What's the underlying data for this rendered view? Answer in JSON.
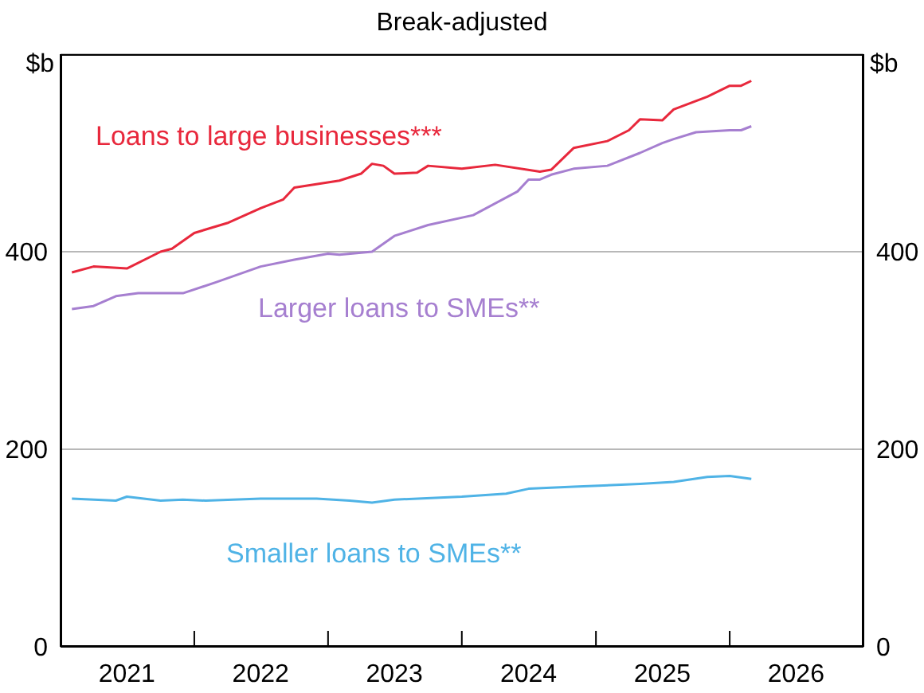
{
  "chart_data": {
    "type": "line",
    "subtitle": "Break-adjusted",
    "ylabel": "$b",
    "y2label": "$b",
    "xlim": [
      "2021-01",
      "2027-01"
    ],
    "xticks": [
      {
        "value": "2021-01",
        "label": null
      },
      {
        "value": "2021-07",
        "label": "2021"
      },
      {
        "value": "2022-01",
        "label": null
      },
      {
        "value": "2022-07",
        "label": "2022"
      },
      {
        "value": "2023-01",
        "label": null
      },
      {
        "value": "2023-07",
        "label": "2023"
      },
      {
        "value": "2024-01",
        "label": null
      },
      {
        "value": "2024-07",
        "label": "2024"
      },
      {
        "value": "2025-01",
        "label": null
      },
      {
        "value": "2025-07",
        "label": "2025"
      },
      {
        "value": "2026-01",
        "label": null
      },
      {
        "value": "2026-07",
        "label": "2026"
      },
      {
        "value": "2027-01",
        "label": null
      }
    ],
    "ylim": [
      0,
      600
    ],
    "yticks": [
      0,
      200,
      400
    ],
    "y2lim": [
      0,
      600
    ],
    "y2ticks": [
      0,
      200,
      400
    ],
    "grid": "y",
    "legend": false,
    "marker": "none",
    "line_style": "solid",
    "series": [
      {
        "name": "Loans to large businesses***",
        "color": "#e8283c",
        "x": [
          "2021-02",
          "2021-04",
          "2021-07",
          "2021-10",
          "2021-11",
          "2022-01",
          "2022-04",
          "2022-07",
          "2022-09",
          "2022-10",
          "2023-02",
          "2023-04",
          "2023-05",
          "2023-06",
          "2023-07",
          "2023-09",
          "2023-10",
          "2024-01",
          "2024-04",
          "2024-08",
          "2024-09",
          "2024-11",
          "2025-02",
          "2025-04",
          "2025-05",
          "2025-07",
          "2025-08",
          "2025-11",
          "2026-01",
          "2026-02",
          "2026-03"
        ],
        "values": [
          379,
          385,
          383,
          400,
          403,
          419,
          429,
          444,
          453,
          465,
          472,
          479,
          489,
          487,
          479,
          480,
          487,
          484,
          488,
          481,
          483,
          505,
          512,
          523,
          534,
          533,
          544,
          557,
          568,
          568,
          573
        ]
      },
      {
        "name": "Larger loans to SMEs**",
        "color": "#a67fd0",
        "x": [
          "2021-02",
          "2021-04",
          "2021-06",
          "2021-08",
          "2021-12",
          "2022-03",
          "2022-07",
          "2022-10",
          "2023-01",
          "2023-02",
          "2023-05",
          "2023-07",
          "2023-10",
          "2024-02",
          "2024-06",
          "2024-07",
          "2024-08",
          "2024-09",
          "2024-11",
          "2025-02",
          "2025-05",
          "2025-07",
          "2025-08",
          "2025-10",
          "2026-01",
          "2026-02",
          "2026-03"
        ],
        "values": [
          342,
          345,
          355,
          358,
          358,
          369,
          385,
          392,
          398,
          397,
          400,
          416,
          427,
          437,
          461,
          473,
          473,
          478,
          484,
          487,
          500,
          510,
          514,
          521,
          523,
          523,
          527
        ]
      },
      {
        "name": "Smaller loans to SMEs**",
        "color": "#4fb3e6",
        "x": [
          "2021-02",
          "2021-06",
          "2021-07",
          "2021-10",
          "2021-12",
          "2022-02",
          "2022-07",
          "2022-12",
          "2023-03",
          "2023-05",
          "2023-07",
          "2024-01",
          "2024-05",
          "2024-07",
          "2024-11",
          "2025-05",
          "2025-08",
          "2025-11",
          "2026-01",
          "2026-03"
        ],
        "values": [
          150,
          148,
          152,
          148,
          149,
          148,
          150,
          150,
          148,
          146,
          149,
          152,
          155,
          160,
          162,
          165,
          167,
          172,
          173,
          170
        ]
      }
    ]
  }
}
